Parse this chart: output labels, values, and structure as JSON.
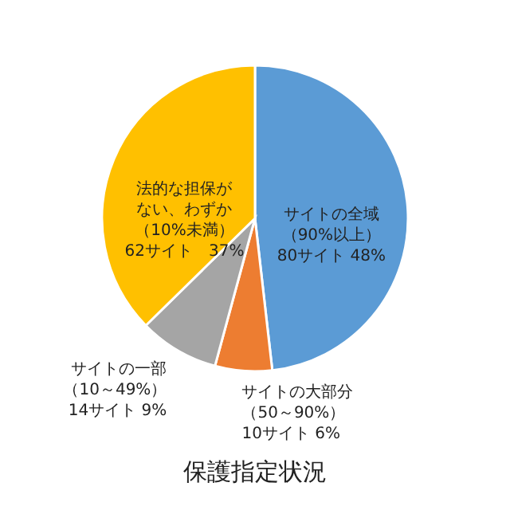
{
  "chart_data": {
    "type": "pie",
    "title": "保護指定状況",
    "categories": [
      "サイトの全域（90%以上）",
      "サイトの大部分（50～90%）",
      "サイトの一部（10～49%）",
      "法的な担保がない、わずか（10%未満）"
    ],
    "values": [
      80,
      10,
      14,
      62
    ],
    "value_labels": [
      "80サイト 48%",
      "10サイト 6%",
      "14サイト 9%",
      "62サイト　37%"
    ],
    "colors": [
      "#5b9bd5",
      "#ed7d31",
      "#a5a5a5",
      "#ffc000"
    ]
  }
}
